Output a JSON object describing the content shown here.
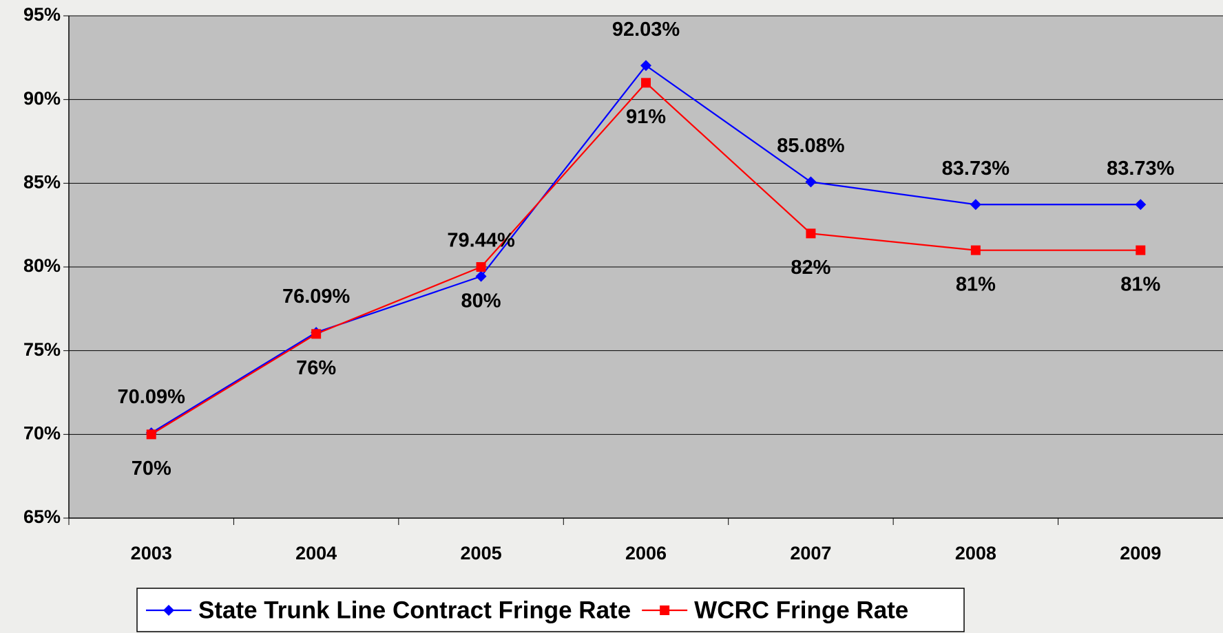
{
  "chart_data": {
    "type": "line",
    "categories": [
      "2003",
      "2004",
      "2005",
      "2006",
      "2007",
      "2008",
      "2009"
    ],
    "series": [
      {
        "name": "State Trunk Line Contract Fringe Rate",
        "color": "#0000ff",
        "marker": "diamond",
        "values": [
          70.09,
          76.09,
          79.44,
          92.03,
          85.08,
          83.73,
          83.73
        ],
        "value_labels": [
          "70.09%",
          "76.09%",
          "79.44%",
          "92.03%",
          "85.08%",
          "83.73%",
          "83.73%"
        ]
      },
      {
        "name": "WCRC Fringe Rate",
        "color": "#ff0000",
        "marker": "square",
        "values": [
          70,
          76,
          80,
          91,
          82,
          81,
          81
        ],
        "value_labels": [
          "70%",
          "76%",
          "80%",
          "91%",
          "82%",
          "81%",
          "81%"
        ]
      }
    ],
    "ylim": [
      65,
      95
    ],
    "yticks": [
      {
        "value": 65,
        "label": "65%"
      },
      {
        "value": 70,
        "label": "70%"
      },
      {
        "value": 75,
        "label": "75%"
      },
      {
        "value": 80,
        "label": "80%"
      },
      {
        "value": 85,
        "label": "85%"
      },
      {
        "value": 90,
        "label": "90%"
      },
      {
        "value": 95,
        "label": "95%"
      }
    ],
    "grid": true,
    "legend": "bottom"
  }
}
